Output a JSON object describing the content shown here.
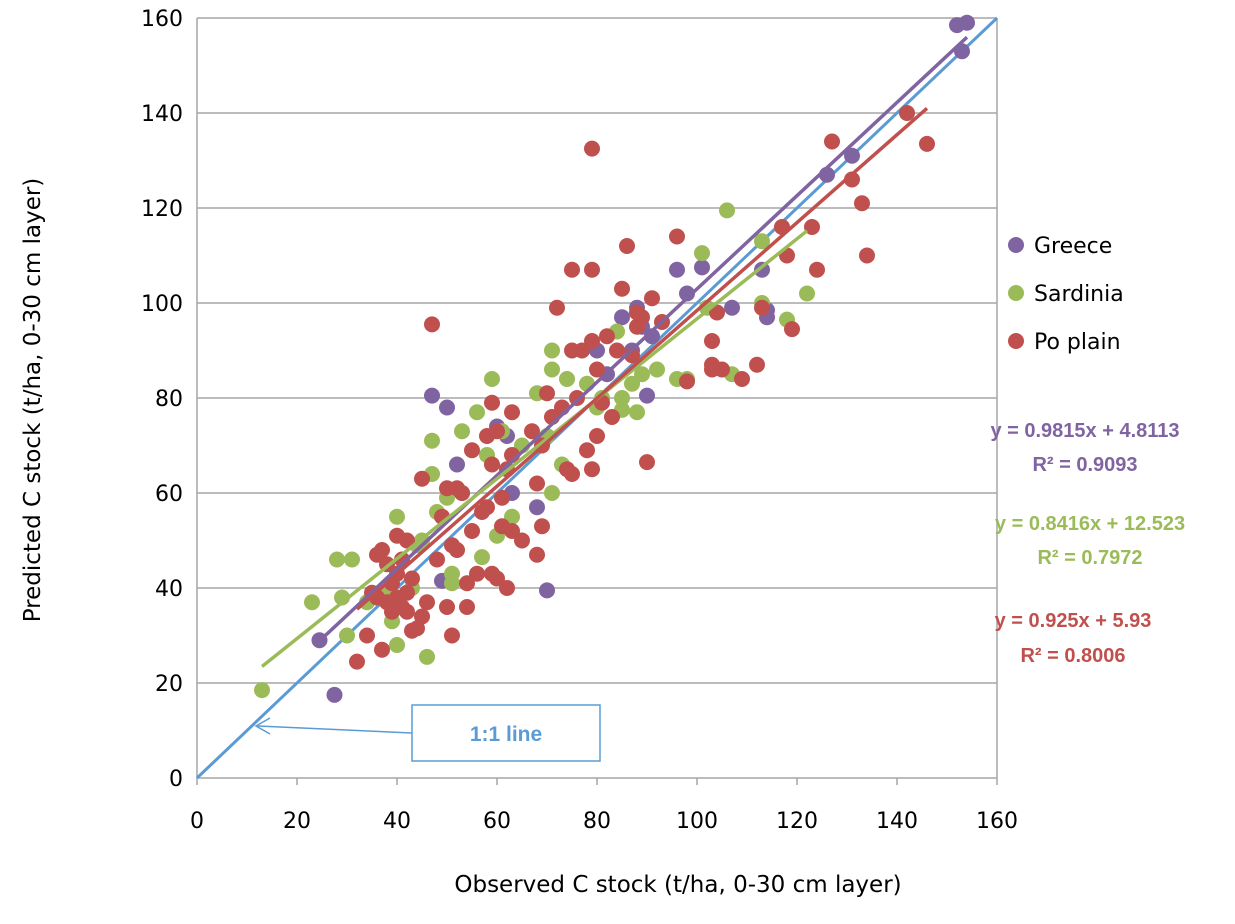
{
  "chart_data": {
    "type": "scatter",
    "title": "",
    "xlabel": "Observed C stock (t/ha, 0-30 cm layer)",
    "ylabel": "Predicted C stock (t/ha, 0-30 cm layer)",
    "xlim": [
      0,
      160
    ],
    "ylim": [
      0,
      160
    ],
    "xticks": [
      "0",
      "20",
      "40",
      "60",
      "80",
      "100",
      "120",
      "140",
      "160"
    ],
    "yticks": [
      "0",
      "20",
      "40",
      "60",
      "80",
      "100",
      "120",
      "140",
      "160"
    ],
    "grid": "horizontal",
    "legend_position": "right",
    "series": [
      {
        "name": "Greece",
        "color": "#8064a2",
        "points": [
          [
            24.5,
            29
          ],
          [
            27.5,
            17.5
          ],
          [
            47,
            80.5
          ],
          [
            49,
            41.5
          ],
          [
            50,
            78
          ],
          [
            52,
            66
          ],
          [
            53,
            60
          ],
          [
            60,
            74
          ],
          [
            62,
            72
          ],
          [
            63,
            60
          ],
          [
            68,
            57
          ],
          [
            70,
            39.5
          ],
          [
            80,
            90
          ],
          [
            82,
            85
          ],
          [
            85,
            97
          ],
          [
            87,
            90
          ],
          [
            88,
            99
          ],
          [
            89,
            95
          ],
          [
            90,
            80.5
          ],
          [
            91,
            93
          ],
          [
            96,
            107
          ],
          [
            98,
            102
          ],
          [
            101,
            107.5
          ],
          [
            107,
            99
          ],
          [
            113,
            107
          ],
          [
            114,
            97
          ],
          [
            114,
            98.5
          ],
          [
            126,
            127
          ],
          [
            131,
            131
          ],
          [
            152,
            158.5
          ],
          [
            153,
            153
          ],
          [
            154,
            159
          ]
        ]
      },
      {
        "name": "Sardinia",
        "color": "#9bbb59",
        "points": [
          [
            13,
            18.5
          ],
          [
            23,
            37
          ],
          [
            28,
            46
          ],
          [
            29,
            38
          ],
          [
            30,
            30
          ],
          [
            31,
            46
          ],
          [
            34,
            37
          ],
          [
            38,
            39
          ],
          [
            39,
            33
          ],
          [
            40,
            28
          ],
          [
            40,
            55
          ],
          [
            43,
            40
          ],
          [
            44,
            49
          ],
          [
            45,
            50
          ],
          [
            46,
            25.5
          ],
          [
            47,
            64
          ],
          [
            47,
            71
          ],
          [
            48,
            56
          ],
          [
            50,
            59
          ],
          [
            51,
            43
          ],
          [
            51,
            41
          ],
          [
            53,
            73
          ],
          [
            56,
            77
          ],
          [
            57,
            46.5
          ],
          [
            58,
            68
          ],
          [
            59,
            84
          ],
          [
            60,
            51
          ],
          [
            61,
            73
          ],
          [
            63,
            55
          ],
          [
            65,
            70
          ],
          [
            68,
            81
          ],
          [
            70,
            72
          ],
          [
            71,
            60
          ],
          [
            71,
            86
          ],
          [
            71,
            90
          ],
          [
            73,
            66
          ],
          [
            74,
            84
          ],
          [
            78,
            83
          ],
          [
            80,
            78
          ],
          [
            81,
            80
          ],
          [
            84,
            94
          ],
          [
            85,
            80
          ],
          [
            85,
            77.5
          ],
          [
            87,
            83
          ],
          [
            88,
            77
          ],
          [
            89,
            85
          ],
          [
            92,
            86
          ],
          [
            96,
            84
          ],
          [
            98,
            84
          ],
          [
            101,
            110.5
          ],
          [
            102,
            99
          ],
          [
            106,
            119.5
          ],
          [
            107,
            85
          ],
          [
            113,
            100
          ],
          [
            113,
            113
          ],
          [
            118,
            96.5
          ],
          [
            122,
            102
          ]
        ]
      },
      {
        "name": "Po plain",
        "color": "#c0504d",
        "points": [
          [
            32,
            24.5
          ],
          [
            34,
            30
          ],
          [
            35,
            39
          ],
          [
            36,
            47
          ],
          [
            36,
            38
          ],
          [
            37,
            27
          ],
          [
            37,
            48
          ],
          [
            38,
            45
          ],
          [
            38,
            37
          ],
          [
            39,
            41
          ],
          [
            39,
            35
          ],
          [
            40,
            43
          ],
          [
            40,
            38
          ],
          [
            40,
            51
          ],
          [
            41,
            36
          ],
          [
            41,
            46
          ],
          [
            42,
            50
          ],
          [
            42,
            39
          ],
          [
            42,
            35
          ],
          [
            43,
            31
          ],
          [
            43,
            42
          ],
          [
            44,
            31.5
          ],
          [
            45,
            34
          ],
          [
            45,
            63
          ],
          [
            46,
            37
          ],
          [
            47,
            95.5
          ],
          [
            48,
            46
          ],
          [
            49,
            55
          ],
          [
            50,
            36
          ],
          [
            50,
            61
          ],
          [
            51,
            30
          ],
          [
            51,
            49
          ],
          [
            52,
            48
          ],
          [
            52,
            61
          ],
          [
            53,
            60
          ],
          [
            54,
            36
          ],
          [
            54,
            41
          ],
          [
            55,
            52
          ],
          [
            55,
            69
          ],
          [
            56,
            43
          ],
          [
            57,
            56
          ],
          [
            58,
            57
          ],
          [
            58,
            72
          ],
          [
            59,
            43
          ],
          [
            59,
            66
          ],
          [
            59,
            79
          ],
          [
            60,
            42
          ],
          [
            60,
            73
          ],
          [
            61,
            53
          ],
          [
            61,
            59
          ],
          [
            62,
            40
          ],
          [
            62,
            65
          ],
          [
            63,
            52
          ],
          [
            63,
            68
          ],
          [
            63,
            77
          ],
          [
            65,
            50
          ],
          [
            67,
            73
          ],
          [
            68,
            47
          ],
          [
            68,
            62
          ],
          [
            69,
            53
          ],
          [
            69,
            70
          ],
          [
            70,
            81
          ],
          [
            71,
            76
          ],
          [
            72,
            99
          ],
          [
            73,
            78
          ],
          [
            74,
            65
          ],
          [
            75,
            64
          ],
          [
            75,
            90
          ],
          [
            75,
            107
          ],
          [
            76,
            80
          ],
          [
            77,
            90
          ],
          [
            78,
            69
          ],
          [
            79,
            65
          ],
          [
            79,
            92
          ],
          [
            79,
            107
          ],
          [
            79,
            132.5
          ],
          [
            80,
            72
          ],
          [
            80,
            86
          ],
          [
            81,
            79
          ],
          [
            82,
            93
          ],
          [
            83,
            76
          ],
          [
            84,
            90
          ],
          [
            85,
            103
          ],
          [
            86,
            112
          ],
          [
            87,
            89
          ],
          [
            88,
            95
          ],
          [
            88,
            98
          ],
          [
            89,
            97
          ],
          [
            90,
            66.5
          ],
          [
            91,
            101
          ],
          [
            93,
            96
          ],
          [
            96,
            114
          ],
          [
            98,
            83.5
          ],
          [
            103,
            87
          ],
          [
            103,
            86
          ],
          [
            103,
            92
          ],
          [
            104,
            98
          ],
          [
            105,
            86
          ],
          [
            109,
            84
          ],
          [
            112,
            87
          ],
          [
            113,
            99
          ],
          [
            117,
            116
          ],
          [
            118,
            110
          ],
          [
            119,
            94.5
          ],
          [
            123,
            116
          ],
          [
            124,
            107
          ],
          [
            127,
            134
          ],
          [
            131,
            126
          ],
          [
            133,
            121
          ],
          [
            134,
            110
          ],
          [
            142,
            140
          ],
          [
            146,
            133.5
          ]
        ]
      }
    ],
    "trendlines": [
      {
        "name": "Greece",
        "color": "#8064a2",
        "slope": 0.9815,
        "intercept": 4.8113,
        "x_range": [
          24.5,
          154
        ],
        "equation": "y = 0.9815x + 4.8113",
        "r2": "R² = 0.9093"
      },
      {
        "name": "Sardinia",
        "color": "#9bbb59",
        "slope": 0.8416,
        "intercept": 12.523,
        "x_range": [
          13,
          122
        ],
        "equation": "y = 0.8416x + 12.523",
        "r2": "R² = 0.7972"
      },
      {
        "name": "Po plain",
        "color": "#c0504d",
        "slope": 0.925,
        "intercept": 5.93,
        "x_range": [
          32,
          146
        ],
        "equation": "y = 0.925x + 5.93",
        "r2": "R² = 0.8006"
      }
    ],
    "identity_line": {
      "color": "#5b9bd5",
      "label": "1:1 line",
      "x_range": [
        0,
        160
      ]
    }
  }
}
